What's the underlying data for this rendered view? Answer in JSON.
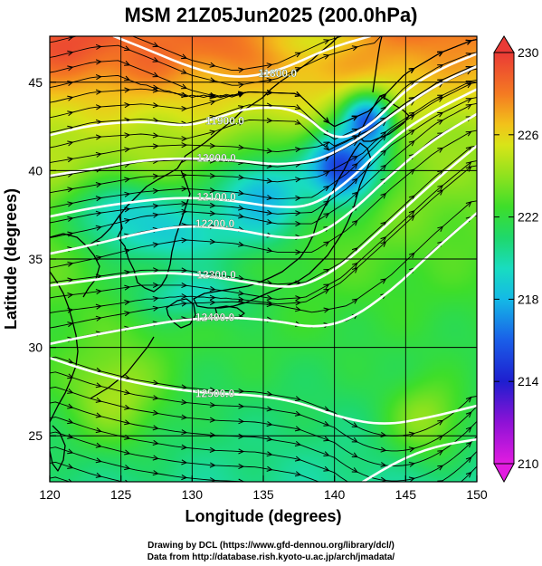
{
  "title": "MSM 21Z05Jun2025 (200.0hPa)",
  "credits": {
    "line1": "Drawing by DCL (https://www.gfd-dennou.org/library/dcl/)",
    "line2": "Data from http://database.rish.kyoto-u.ac.jp/arch/jmadata/"
  },
  "chart_data": {
    "type": "heatmap",
    "xlabel": "Longitude (degrees)",
    "ylabel": "Latitude  (degrees)",
    "xlim": [
      120,
      150
    ],
    "ylim": [
      22.4,
      47.6
    ],
    "x_ticks": [
      120,
      125,
      130,
      135,
      140,
      145,
      150
    ],
    "y_ticks": [
      25,
      30,
      35,
      40,
      45
    ],
    "colorbar": {
      "min": 210,
      "max": 230,
      "tick_labels": [
        "230",
        "226",
        "222",
        "218",
        "214",
        "210"
      ],
      "tick_values": [
        230,
        226,
        222,
        218,
        214,
        210
      ],
      "stops": [
        {
          "v": 210,
          "c": "#e21ce0"
        },
        {
          "v": 212,
          "c": "#8e12d6"
        },
        {
          "v": 214,
          "c": "#1e1ecf"
        },
        {
          "v": 216,
          "c": "#1a5ee8"
        },
        {
          "v": 218,
          "c": "#14b9e6"
        },
        {
          "v": 219.5,
          "c": "#19dcc0"
        },
        {
          "v": 221,
          "c": "#1fd86b"
        },
        {
          "v": 222.5,
          "c": "#3ede2a"
        },
        {
          "v": 224,
          "c": "#8fe21e"
        },
        {
          "v": 225.5,
          "c": "#d8e418"
        },
        {
          "v": 226.5,
          "c": "#f2c21a"
        },
        {
          "v": 228,
          "c": "#f47a22"
        },
        {
          "v": 230,
          "c": "#ea3a36"
        }
      ]
    },
    "contour_labels": [
      {
        "text": "11900.0",
        "lon": 132.3,
        "lat": 42.8
      },
      {
        "text": "12000.0",
        "lon": 131.7,
        "lat": 40.7
      },
      {
        "text": "12100.0",
        "lon": 131.7,
        "lat": 38.5
      },
      {
        "text": "12200.0",
        "lon": 131.6,
        "lat": 37.0
      },
      {
        "text": "12300.0",
        "lon": 131.7,
        "lat": 34.1
      },
      {
        "text": "12400.0",
        "lon": 131.6,
        "lat": 31.7
      },
      {
        "text": "12500.0",
        "lon": 131.6,
        "lat": 27.4
      },
      {
        "text": "11800.0",
        "lon": 136.0,
        "lat": 45.5
      }
    ],
    "contours": [
      {
        "level": 11800,
        "points": [
          [
            124.5,
            47.6
          ],
          [
            127.0,
            46.8
          ],
          [
            130.0,
            45.8
          ],
          [
            133.0,
            45.2
          ],
          [
            136.0,
            45.6
          ],
          [
            139.5,
            46.9
          ],
          [
            142.5,
            47.6
          ]
        ]
      },
      {
        "level": 11900,
        "points": [
          [
            120.0,
            42.0
          ],
          [
            123.0,
            42.6
          ],
          [
            126.5,
            42.8
          ],
          [
            129.5,
            42.5
          ],
          [
            131.5,
            42.9
          ],
          [
            134.0,
            43.6
          ],
          [
            137.5,
            43.5
          ],
          [
            140.0,
            41.6
          ],
          [
            142.5,
            42.5
          ],
          [
            145.0,
            44.6
          ],
          [
            147.5,
            45.8
          ],
          [
            150.0,
            46.6
          ]
        ]
      },
      {
        "level": 12000,
        "points": [
          [
            120.0,
            39.7
          ],
          [
            123.0,
            40.1
          ],
          [
            126.5,
            40.6
          ],
          [
            129.5,
            40.7
          ],
          [
            133.0,
            40.6
          ],
          [
            136.0,
            40.3
          ],
          [
            139.0,
            40.6
          ],
          [
            142.0,
            41.9
          ],
          [
            145.0,
            43.7
          ],
          [
            147.5,
            45.0
          ],
          [
            150.0,
            45.9
          ]
        ]
      },
      {
        "level": 12100,
        "points": [
          [
            120.0,
            37.4
          ],
          [
            123.0,
            37.9
          ],
          [
            126.5,
            38.3
          ],
          [
            129.5,
            38.5
          ],
          [
            133.0,
            38.3
          ],
          [
            136.0,
            37.9
          ],
          [
            138.5,
            38.0
          ],
          [
            141.0,
            39.4
          ],
          [
            144.0,
            41.8
          ],
          [
            147.0,
            43.4
          ],
          [
            150.0,
            44.6
          ]
        ]
      },
      {
        "level": 12200,
        "points": [
          [
            120.0,
            35.3
          ],
          [
            123.0,
            35.8
          ],
          [
            126.5,
            36.5
          ],
          [
            129.5,
            36.9
          ],
          [
            133.0,
            36.7
          ],
          [
            136.0,
            36.2
          ],
          [
            138.5,
            36.2
          ],
          [
            141.0,
            37.5
          ],
          [
            144.0,
            39.8
          ],
          [
            147.0,
            41.8
          ],
          [
            150.0,
            43.2
          ]
        ]
      },
      {
        "level": 12300,
        "points": [
          [
            120.0,
            33.5
          ],
          [
            123.0,
            33.8
          ],
          [
            126.5,
            34.2
          ],
          [
            129.5,
            34.2
          ],
          [
            133.0,
            33.8
          ],
          [
            136.0,
            33.4
          ],
          [
            138.0,
            33.5
          ],
          [
            140.5,
            34.6
          ],
          [
            143.5,
            36.8
          ],
          [
            147.0,
            39.4
          ],
          [
            150.0,
            41.4
          ]
        ]
      },
      {
        "level": 12400,
        "points": [
          [
            120.0,
            30.2
          ],
          [
            123.0,
            30.7
          ],
          [
            126.5,
            31.2
          ],
          [
            129.5,
            31.6
          ],
          [
            133.0,
            31.7
          ],
          [
            136.0,
            31.5
          ],
          [
            138.5,
            31.1
          ],
          [
            141.0,
            31.5
          ],
          [
            144.0,
            33.2
          ],
          [
            147.0,
            35.5
          ],
          [
            150.0,
            37.6
          ]
        ]
      },
      {
        "level": 12500,
        "points": [
          [
            120.0,
            29.4
          ],
          [
            123.0,
            28.6
          ],
          [
            126.0,
            28.0
          ],
          [
            129.0,
            27.6
          ],
          [
            131.5,
            27.4
          ],
          [
            134.5,
            27.3
          ],
          [
            137.5,
            26.9
          ],
          [
            140.5,
            26.0
          ],
          [
            143.5,
            25.6
          ],
          [
            146.5,
            26.0
          ],
          [
            150.0,
            26.7
          ]
        ]
      },
      {
        "level": 12600,
        "points": [
          [
            142.0,
            22.4
          ],
          [
            144.5,
            23.6
          ],
          [
            147.0,
            24.4
          ],
          [
            150.0,
            24.8
          ]
        ]
      }
    ],
    "temperature_features": [
      {
        "lon": 121.5,
        "lat": 47.3,
        "value": 229.5,
        "sx": 3.5,
        "sy": 1.6
      },
      {
        "lon": 126.5,
        "lat": 46.8,
        "value": 228.5,
        "sx": 3.0,
        "sy": 1.8
      },
      {
        "lon": 132.5,
        "lat": 47.4,
        "value": 228.5,
        "sx": 2.8,
        "sy": 1.2
      },
      {
        "lon": 138.5,
        "lat": 47.4,
        "value": 225.5,
        "sx": 3.5,
        "sy": 1.2
      },
      {
        "lon": 140.5,
        "lat": 40.2,
        "value": 214.5,
        "sx": 2.6,
        "sy": 2.0
      },
      {
        "lon": 142.3,
        "lat": 42.7,
        "value": 216.0,
        "sx": 1.8,
        "sy": 1.6
      },
      {
        "lon": 129.0,
        "lat": 36.5,
        "value": 219.0,
        "sx": 5.5,
        "sy": 2.2
      },
      {
        "lon": 125.0,
        "lat": 37.5,
        "value": 219.0,
        "sx": 3.5,
        "sy": 1.8
      },
      {
        "lon": 135.0,
        "lat": 38.5,
        "value": 218.0,
        "sx": 3.5,
        "sy": 2.5
      },
      {
        "lon": 130.0,
        "lat": 33.0,
        "value": 219.5,
        "sx": 4.5,
        "sy": 1.5
      },
      {
        "lon": 124.5,
        "lat": 27.5,
        "value": 224.5,
        "sx": 3.5,
        "sy": 3.0
      },
      {
        "lon": 146.5,
        "lat": 26.0,
        "value": 224.0,
        "sx": 3.0,
        "sy": 2.5
      }
    ],
    "wind_field": {
      "description": "streamlines",
      "flow": "westerly"
    }
  }
}
